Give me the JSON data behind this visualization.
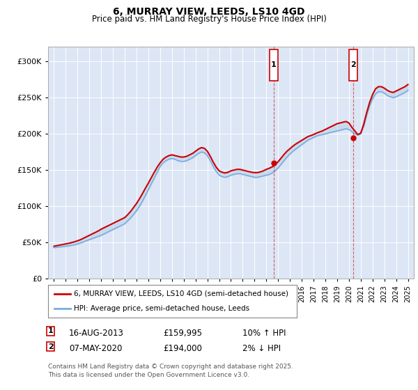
{
  "title": "6, MURRAY VIEW, LEEDS, LS10 4GD",
  "subtitle": "Price paid vs. HM Land Registry's House Price Index (HPI)",
  "ylim": [
    0,
    320000
  ],
  "yticks": [
    0,
    50000,
    100000,
    150000,
    200000,
    250000,
    300000
  ],
  "ytick_labels": [
    "£0",
    "£50K",
    "£100K",
    "£150K",
    "£200K",
    "£250K",
    "£300K"
  ],
  "bg_color": "#ffffff",
  "plot_bg": "#dce6f5",
  "legend_line1": "6, MURRAY VIEW, LEEDS, LS10 4GD (semi-detached house)",
  "legend_line2": "HPI: Average price, semi-detached house, Leeds",
  "footnote": "Contains HM Land Registry data © Crown copyright and database right 2025.\nThis data is licensed under the Open Government Licence v3.0.",
  "purchase1_date": "16-AUG-2013",
  "purchase1_price": 159995,
  "purchase1_hpi": "10% ↑ HPI",
  "purchase2_date": "07-MAY-2020",
  "purchase2_price": 194000,
  "purchase2_hpi": "2% ↓ HPI",
  "purchase1_year": 2013.62,
  "purchase2_year": 2020.35,
  "line_color_red": "#cc0000",
  "line_color_blue": "#7aacdc",
  "fill_color": "#b8cfe8",
  "hpi_years": [
    1995.0,
    1995.25,
    1995.5,
    1995.75,
    1996.0,
    1996.25,
    1996.5,
    1996.75,
    1997.0,
    1997.25,
    1997.5,
    1997.75,
    1998.0,
    1998.25,
    1998.5,
    1998.75,
    1999.0,
    1999.25,
    1999.5,
    1999.75,
    2000.0,
    2000.25,
    2000.5,
    2000.75,
    2001.0,
    2001.25,
    2001.5,
    2001.75,
    2002.0,
    2002.25,
    2002.5,
    2002.75,
    2003.0,
    2003.25,
    2003.5,
    2003.75,
    2004.0,
    2004.25,
    2004.5,
    2004.75,
    2005.0,
    2005.25,
    2005.5,
    2005.75,
    2006.0,
    2006.25,
    2006.5,
    2006.75,
    2007.0,
    2007.25,
    2007.5,
    2007.75,
    2008.0,
    2008.25,
    2008.5,
    2008.75,
    2009.0,
    2009.25,
    2009.5,
    2009.75,
    2010.0,
    2010.25,
    2010.5,
    2010.75,
    2011.0,
    2011.25,
    2011.5,
    2011.75,
    2012.0,
    2012.25,
    2012.5,
    2012.75,
    2013.0,
    2013.25,
    2013.5,
    2013.75,
    2014.0,
    2014.25,
    2014.5,
    2014.75,
    2015.0,
    2015.25,
    2015.5,
    2015.75,
    2016.0,
    2016.25,
    2016.5,
    2016.75,
    2017.0,
    2017.25,
    2017.5,
    2017.75,
    2018.0,
    2018.25,
    2018.5,
    2018.75,
    2019.0,
    2019.25,
    2019.5,
    2019.75,
    2020.0,
    2020.25,
    2020.5,
    2020.75,
    2021.0,
    2021.25,
    2021.5,
    2021.75,
    2022.0,
    2022.25,
    2022.5,
    2022.75,
    2023.0,
    2023.25,
    2023.5,
    2023.75,
    2024.0,
    2024.25,
    2024.5,
    2024.75,
    2025.0
  ],
  "hpi_values": [
    43000,
    43500,
    44000,
    44500,
    45000,
    45500,
    46200,
    47000,
    48000,
    49500,
    51000,
    52500,
    54000,
    55500,
    57000,
    58500,
    60000,
    62000,
    64000,
    66000,
    68000,
    70000,
    72000,
    74000,
    76000,
    80000,
    84000,
    89000,
    94000,
    100000,
    107000,
    115000,
    123000,
    131000,
    139000,
    147000,
    155000,
    160000,
    163000,
    165000,
    166000,
    165000,
    163000,
    162000,
    162000,
    163000,
    165000,
    167000,
    170000,
    173000,
    175000,
    174000,
    170000,
    163000,
    155000,
    148000,
    143000,
    141000,
    140000,
    141000,
    143000,
    144000,
    145000,
    145000,
    144000,
    143000,
    142000,
    141000,
    140000,
    140000,
    141000,
    142000,
    143000,
    144000,
    146000,
    149000,
    153000,
    158000,
    163000,
    168000,
    172000,
    176000,
    179000,
    182000,
    185000,
    188000,
    191000,
    193000,
    195000,
    197000,
    198000,
    199000,
    200000,
    201000,
    202000,
    203000,
    204000,
    205000,
    206000,
    207000,
    206000,
    203000,
    200000,
    198000,
    200000,
    210000,
    225000,
    238000,
    248000,
    255000,
    258000,
    258000,
    256000,
    253000,
    251000,
    250000,
    251000,
    253000,
    255000,
    257000,
    260000
  ],
  "red_values": [
    45000,
    45800,
    46600,
    47400,
    48200,
    49000,
    50000,
    51200,
    52500,
    54000,
    56000,
    58000,
    60000,
    62000,
    64000,
    66000,
    68500,
    70500,
    72500,
    74500,
    76500,
    78500,
    80500,
    82500,
    84500,
    88500,
    93000,
    98500,
    104000,
    110500,
    117500,
    125000,
    132000,
    139500,
    147000,
    154000,
    160000,
    165000,
    168000,
    170000,
    171000,
    170000,
    169000,
    168000,
    168000,
    169000,
    171000,
    173000,
    176000,
    179000,
    181000,
    180000,
    176000,
    169000,
    161000,
    154000,
    149000,
    147000,
    146000,
    147000,
    149000,
    150000,
    151000,
    151000,
    150000,
    149000,
    148000,
    147000,
    146500,
    146500,
    147500,
    149000,
    151000,
    152500,
    154500,
    157500,
    161500,
    166500,
    171500,
    176000,
    179500,
    183000,
    186000,
    188500,
    191000,
    193500,
    196000,
    197500,
    199000,
    201000,
    202500,
    204000,
    206000,
    208000,
    210000,
    212000,
    214000,
    215000,
    216000,
    217000,
    215000,
    209000,
    204000,
    199000,
    201000,
    213000,
    229000,
    243000,
    254000,
    262000,
    265000,
    265000,
    263000,
    260000,
    258000,
    257000,
    259000,
    261000,
    263000,
    265000,
    268000
  ]
}
